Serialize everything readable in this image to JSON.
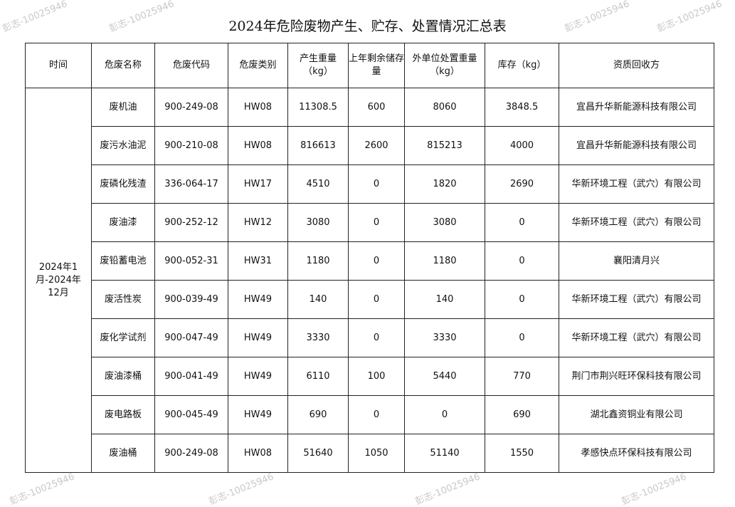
{
  "title": "2024年危险废物产生、贮存、处置情况汇总表",
  "headers": [
    "时间",
    "危废名称",
    "危废代码",
    "危废类别",
    "产生重量（kg）",
    "上年剩余储存量",
    "外单位处置重量（kg）",
    "库存（kg）",
    "资质回收方"
  ],
  "period": "2024年1月-2024年12月",
  "rows": [
    [
      "废机油",
      "900-249-08",
      "HW08",
      "11308.5",
      "600",
      "8060",
      "3848.5",
      "宜昌升华新能源科技有限公司"
    ],
    [
      "废污水油泥",
      "900-210-08",
      "HW08",
      "816613",
      "2600",
      "815213",
      "4000",
      "宜昌升华新能源科技有限公司"
    ],
    [
      "废磷化残渣",
      "336-064-17",
      "HW17",
      "4510",
      "0",
      "1820",
      "2690",
      "华新环境工程（武穴）有限公司"
    ],
    [
      "废油漆",
      "900-252-12",
      "HW12",
      "3080",
      "0",
      "3080",
      "0",
      "华新环境工程（武穴）有限公司"
    ],
    [
      "废铅蓄电池",
      "900-052-31",
      "HW31",
      "1180",
      "0",
      "1180",
      "0",
      "襄阳清月兴"
    ],
    [
      "废活性炭",
      "900-039-49",
      "HW49",
      "140",
      "0",
      "140",
      "0",
      "华新环境工程（武穴）有限公司"
    ],
    [
      "废化学试剂",
      "900-047-49",
      "HW49",
      "3330",
      "0",
      "3330",
      "0",
      "华新环境工程（武穴）有限公司"
    ],
    [
      "废油漆桶",
      "900-041-49",
      "HW49",
      "6110",
      "100",
      "5440",
      "770",
      "荆门市荆兴旺环保科技有限公司"
    ],
    [
      "废电路板",
      "900-045-49",
      "HW49",
      "690",
      "0",
      "0",
      "690",
      "湖北鑫资铜业有限公司"
    ],
    [
      "废油桶",
      "900-249-08",
      "HW08",
      "51640",
      "1050",
      "51140",
      "1550",
      "孝感快点环保科技有限公司"
    ]
  ],
  "watermark": "彭志-10025946"
}
